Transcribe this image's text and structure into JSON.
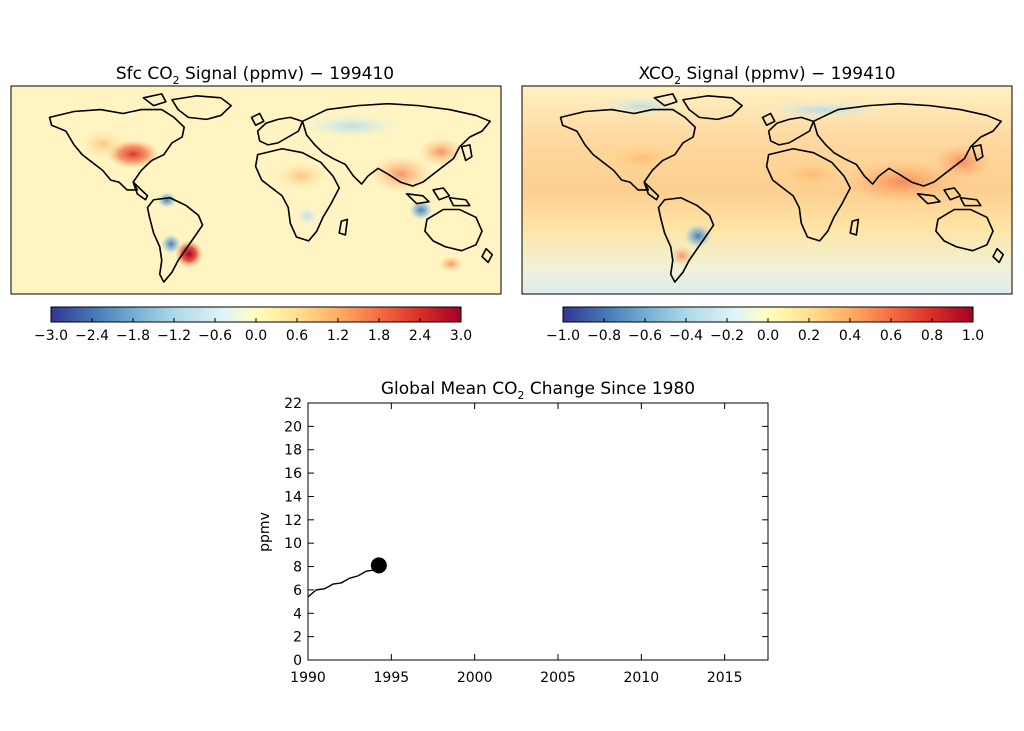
{
  "chart_data": [
    {
      "type": "heatmap",
      "title_prefix": "Sfc CO",
      "title_sub": "2",
      "title_suffix": " Signal (ppmv) − 199410",
      "colorbar": {
        "ticks": [
          "−3.0",
          "−2.4",
          "−1.8",
          "−1.2",
          "−0.6",
          "0.0",
          "0.6",
          "1.2",
          "1.8",
          "2.4",
          "3.0"
        ],
        "range": [
          -3.0,
          3.0
        ]
      },
      "features": [
        {
          "region": "eastern North America",
          "value": 2.2
        },
        {
          "region": "southern South America",
          "value": 3.0
        },
        {
          "region": "central South America",
          "value": -1.5
        },
        {
          "region": "southern Africa",
          "value": -1.0
        },
        {
          "region": "South/East Asia",
          "value": 1.3
        }
      ]
    },
    {
      "type": "heatmap",
      "title_prefix": "XCO",
      "title_sub": "2",
      "title_suffix": " Signal (ppmv) − 199410",
      "colorbar": {
        "ticks": [
          "−1.0",
          "−0.8",
          "−0.6",
          "−0.4",
          "−0.2",
          "0.0",
          "0.2",
          "0.4",
          "0.6",
          "0.8",
          "1.0"
        ],
        "range": [
          -1.0,
          1.0
        ]
      },
      "features": [
        {
          "region": "Northern Hemisphere tropics band",
          "value": 0.4
        },
        {
          "region": "South Asia",
          "value": 0.6
        },
        {
          "region": "central South America",
          "value": -0.5
        },
        {
          "region": "southern oceans",
          "value": -0.2
        }
      ]
    },
    {
      "type": "line",
      "title_prefix": "Global Mean CO",
      "title_sub": "2",
      "title_suffix": " Change Since 1980",
      "ylabel": "ppmv",
      "xlabel": "",
      "xlim": [
        1990,
        2017.6
      ],
      "ylim": [
        0,
        22
      ],
      "xticks": [
        "1990",
        "1995",
        "2000",
        "2005",
        "2010",
        "2015"
      ],
      "yticks": [
        "0",
        "2",
        "4",
        "6",
        "8",
        "10",
        "12",
        "14",
        "16",
        "18",
        "20",
        "22"
      ],
      "series": [
        {
          "x": [
            1990.0,
            1990.5,
            1991.0,
            1991.5,
            1992.0,
            1992.5,
            1993.0,
            1993.5,
            1994.0,
            1994.25
          ],
          "y": [
            5.4,
            6.0,
            6.1,
            6.5,
            6.6,
            7.0,
            7.2,
            7.6,
            7.7,
            8.1
          ]
        }
      ],
      "marker": {
        "x": 1994.25,
        "y": 8.1
      }
    }
  ]
}
